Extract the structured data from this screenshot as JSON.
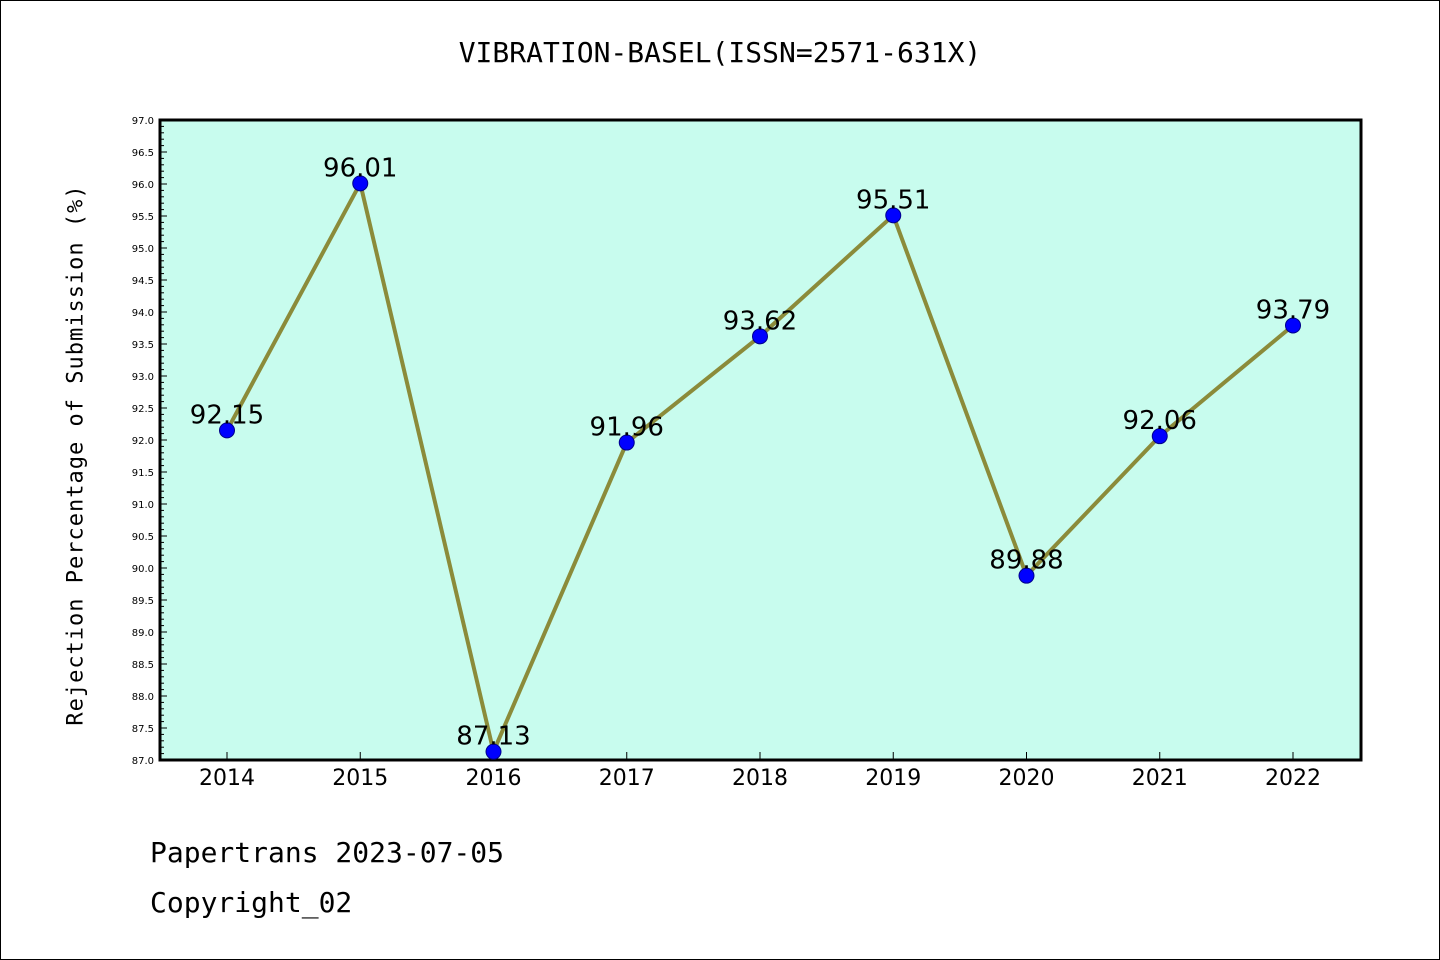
{
  "chart_data": {
    "type": "line",
    "title": "VIBRATION-BASEL(ISSN=2571-631X)",
    "xlabel": "",
    "ylabel": "Rejection Percentage of Submission (%)",
    "categories": [
      "2014",
      "2015",
      "2016",
      "2017",
      "2018",
      "2019",
      "2020",
      "2021",
      "2022"
    ],
    "values": [
      92.15,
      96.01,
      87.13,
      91.96,
      93.62,
      95.51,
      89.88,
      92.06,
      93.79
    ],
    "data_labels": [
      "92.15",
      "96.01",
      "87.13",
      "91.96",
      "93.62",
      "95.51",
      "89.88",
      "92.06",
      "93.79"
    ],
    "ylim": [
      87.0,
      97.0
    ],
    "yticks": [
      "87.0",
      "87.5",
      "88.0",
      "88.5",
      "89.0",
      "89.5",
      "90.0",
      "90.5",
      "91.0",
      "91.5",
      "92.0",
      "92.5",
      "93.0",
      "93.5",
      "94.0",
      "94.5",
      "95.0",
      "95.5",
      "96.0",
      "96.5",
      "97.0"
    ],
    "grid": false,
    "colors": {
      "background": "#c8fcee",
      "line": "#8b8b3a",
      "marker": "#0000ff"
    }
  },
  "footer": {
    "line1": "Papertrans 2023-07-05",
    "line2": "Copyright_02"
  }
}
